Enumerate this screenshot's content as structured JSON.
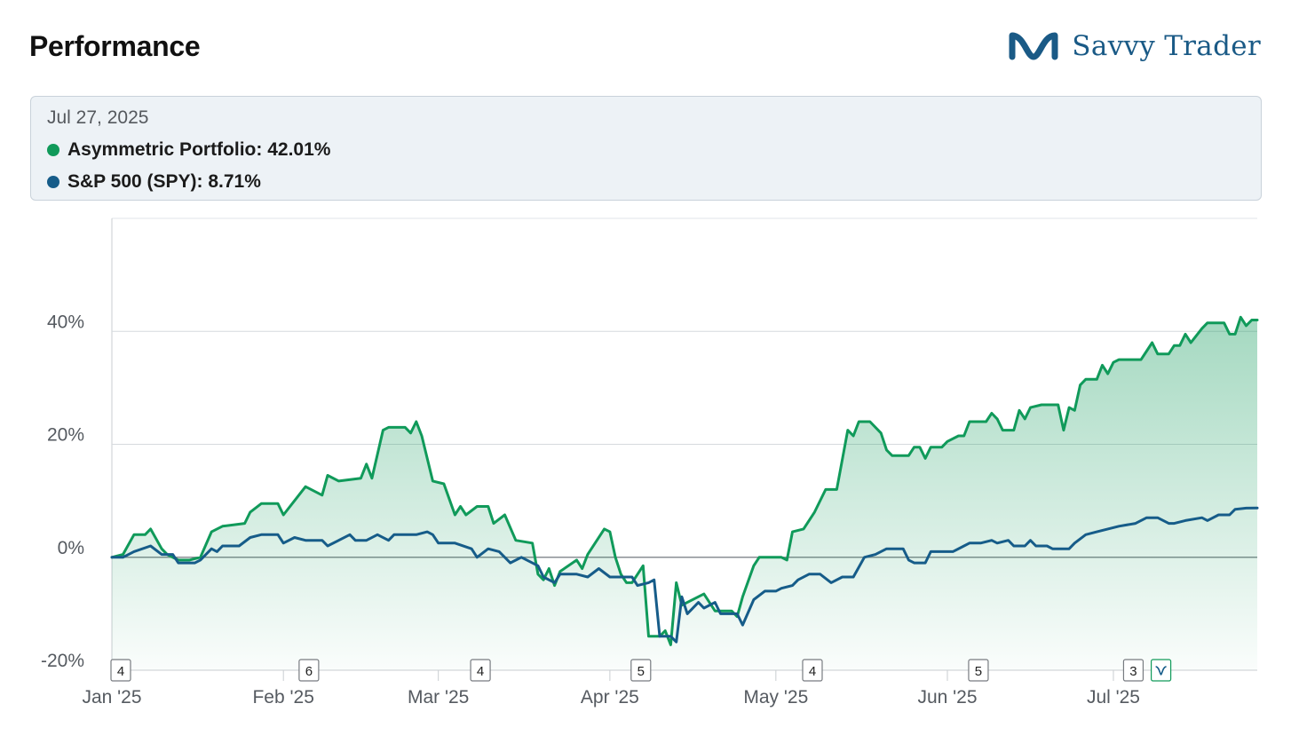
{
  "header": {
    "title": "Performance",
    "brand_name": "Savvy Trader",
    "brand_icon": "savvy-trader-logo-icon",
    "brand_color": "#1a5a86"
  },
  "tooltip": {
    "date": "Jul 27, 2025",
    "rows": [
      {
        "label": "Asymmetric Portfolio",
        "value": "42.01%",
        "color": "#109a5a"
      },
      {
        "label": "S&P 500 (SPY)",
        "value": "8.71%",
        "color": "#165c89"
      }
    ]
  },
  "chart_data": {
    "type": "line",
    "title": "",
    "xlabel": "",
    "ylabel": "",
    "x_range": [
      "2025-01-01",
      "2025-07-27"
    ],
    "ylim": [
      -20,
      60
    ],
    "y_ticks": [
      {
        "value": 40,
        "label": "40%"
      },
      {
        "value": 20,
        "label": "20%"
      },
      {
        "value": 0,
        "label": "0%"
      },
      {
        "value": -20,
        "label": "-20%"
      }
    ],
    "x_ticks": [
      {
        "date": "2025-01-01",
        "label": "Jan '25"
      },
      {
        "date": "2025-02-01",
        "label": "Feb '25"
      },
      {
        "date": "2025-03-01",
        "label": "Mar '25"
      },
      {
        "date": "2025-04-01",
        "label": "Apr '25"
      },
      {
        "date": "2025-05-01",
        "label": "May '25"
      },
      {
        "date": "2025-06-01",
        "label": "Jun '25"
      },
      {
        "date": "2025-07-01",
        "label": "Jul '25"
      }
    ],
    "grid": "horizontal",
    "legend": "top",
    "series": [
      {
        "name": "Asymmetric Portfolio",
        "color": "#109a5a",
        "filled": true,
        "points": [
          [
            "2025-01-01",
            0
          ],
          [
            "2025-01-03",
            0.5
          ],
          [
            "2025-01-05",
            4
          ],
          [
            "2025-01-07",
            4
          ],
          [
            "2025-01-08",
            5
          ],
          [
            "2025-01-10",
            1.5
          ],
          [
            "2025-01-11",
            0.5
          ],
          [
            "2025-01-13",
            -0.5
          ],
          [
            "2025-01-15",
            -0.5
          ],
          [
            "2025-01-17",
            0
          ],
          [
            "2025-01-19",
            4.5
          ],
          [
            "2025-01-21",
            5.5
          ],
          [
            "2025-01-25",
            6
          ],
          [
            "2025-01-26",
            8
          ],
          [
            "2025-01-28",
            9.5
          ],
          [
            "2025-01-31",
            9.5
          ],
          [
            "2025-02-01",
            7.5
          ],
          [
            "2025-02-03",
            10
          ],
          [
            "2025-02-05",
            12.5
          ],
          [
            "2025-02-08",
            11
          ],
          [
            "2025-02-09",
            14.5
          ],
          [
            "2025-02-11",
            13.5
          ],
          [
            "2025-02-15",
            14
          ],
          [
            "2025-02-16",
            16.5
          ],
          [
            "2025-02-17",
            14
          ],
          [
            "2025-02-19",
            22.5
          ],
          [
            "2025-02-20",
            23
          ],
          [
            "2025-02-23",
            23
          ],
          [
            "2025-02-24",
            22
          ],
          [
            "2025-02-25",
            24
          ],
          [
            "2025-02-26",
            21.5
          ],
          [
            "2025-02-28",
            13.5
          ],
          [
            "2025-03-02",
            13
          ],
          [
            "2025-03-04",
            7.5
          ],
          [
            "2025-03-05",
            9
          ],
          [
            "2025-03-06",
            7.5
          ],
          [
            "2025-03-08",
            9
          ],
          [
            "2025-03-10",
            9
          ],
          [
            "2025-03-11",
            6
          ],
          [
            "2025-03-13",
            7.5
          ],
          [
            "2025-03-15",
            3
          ],
          [
            "2025-03-18",
            2.5
          ],
          [
            "2025-03-19",
            -3
          ],
          [
            "2025-03-20",
            -4
          ],
          [
            "2025-03-21",
            -2
          ],
          [
            "2025-03-22",
            -5
          ],
          [
            "2025-03-23",
            -2.5
          ],
          [
            "2025-03-26",
            -0.5
          ],
          [
            "2025-03-27",
            -2
          ],
          [
            "2025-03-28",
            0.5
          ],
          [
            "2025-03-31",
            5
          ],
          [
            "2025-04-01",
            4.5
          ],
          [
            "2025-04-02",
            0
          ],
          [
            "2025-04-03",
            -3
          ],
          [
            "2025-04-04",
            -4.5
          ],
          [
            "2025-04-05",
            -4.5
          ],
          [
            "2025-04-07",
            -1.5
          ],
          [
            "2025-04-08",
            -14
          ],
          [
            "2025-04-10",
            -14
          ],
          [
            "2025-04-11",
            -13
          ],
          [
            "2025-04-12",
            -15.5
          ],
          [
            "2025-04-13",
            -4.5
          ],
          [
            "2025-04-14",
            -8.5
          ],
          [
            "2025-04-15",
            -8
          ],
          [
            "2025-04-18",
            -6.5
          ],
          [
            "2025-04-20",
            -9.5
          ],
          [
            "2025-04-23",
            -9.5
          ],
          [
            "2025-04-24",
            -10.5
          ],
          [
            "2025-04-25",
            -7
          ],
          [
            "2025-04-27",
            -1.5
          ],
          [
            "2025-04-28",
            0
          ],
          [
            "2025-04-30",
            0
          ],
          [
            "2025-05-02",
            0
          ],
          [
            "2025-05-03",
            -0.5
          ],
          [
            "2025-05-04",
            4.5
          ],
          [
            "2025-05-06",
            5
          ],
          [
            "2025-05-08",
            8
          ],
          [
            "2025-05-10",
            12
          ],
          [
            "2025-05-12",
            12
          ],
          [
            "2025-05-14",
            22.5
          ],
          [
            "2025-05-15",
            21.5
          ],
          [
            "2025-05-16",
            24
          ],
          [
            "2025-05-18",
            24
          ],
          [
            "2025-05-20",
            22
          ],
          [
            "2025-05-21",
            19
          ],
          [
            "2025-05-22",
            18
          ],
          [
            "2025-05-25",
            18
          ],
          [
            "2025-05-26",
            19.5
          ],
          [
            "2025-05-27",
            19.5
          ],
          [
            "2025-05-28",
            17.5
          ],
          [
            "2025-05-29",
            19.5
          ],
          [
            "2025-05-31",
            19.5
          ],
          [
            "2025-06-01",
            20.5
          ],
          [
            "2025-06-03",
            21.5
          ],
          [
            "2025-06-04",
            21.5
          ],
          [
            "2025-06-05",
            24
          ],
          [
            "2025-06-08",
            24
          ],
          [
            "2025-06-09",
            25.5
          ],
          [
            "2025-06-10",
            24.5
          ],
          [
            "2025-06-11",
            22.5
          ],
          [
            "2025-06-13",
            22.5
          ],
          [
            "2025-06-14",
            26
          ],
          [
            "2025-06-15",
            24.5
          ],
          [
            "2025-06-16",
            26.5
          ],
          [
            "2025-06-18",
            27
          ],
          [
            "2025-06-21",
            27
          ],
          [
            "2025-06-22",
            22.5
          ],
          [
            "2025-06-23",
            26.5
          ],
          [
            "2025-06-24",
            26
          ],
          [
            "2025-06-25",
            30.5
          ],
          [
            "2025-06-26",
            31.5
          ],
          [
            "2025-06-28",
            31.5
          ],
          [
            "2025-06-29",
            34
          ],
          [
            "2025-06-30",
            32.5
          ],
          [
            "2025-07-01",
            34.5
          ],
          [
            "2025-07-02",
            35
          ],
          [
            "2025-07-06",
            35
          ],
          [
            "2025-07-07",
            36.5
          ],
          [
            "2025-07-08",
            38
          ],
          [
            "2025-07-09",
            36
          ],
          [
            "2025-07-11",
            36
          ],
          [
            "2025-07-12",
            37.5
          ],
          [
            "2025-07-13",
            37.5
          ],
          [
            "2025-07-14",
            39.5
          ],
          [
            "2025-07-15",
            38
          ],
          [
            "2025-07-17",
            40.5
          ],
          [
            "2025-07-18",
            41.5
          ],
          [
            "2025-07-21",
            41.5
          ],
          [
            "2025-07-22",
            39.5
          ],
          [
            "2025-07-23",
            39.5
          ],
          [
            "2025-07-24",
            42.5
          ],
          [
            "2025-07-25",
            41
          ],
          [
            "2025-07-26",
            42
          ],
          [
            "2025-07-27",
            42.01
          ]
        ]
      },
      {
        "name": "S&P 500 (SPY)",
        "color": "#165c89",
        "filled": false,
        "points": [
          [
            "2025-01-01",
            0
          ],
          [
            "2025-01-03",
            0
          ],
          [
            "2025-01-05",
            1
          ],
          [
            "2025-01-08",
            2
          ],
          [
            "2025-01-10",
            0.5
          ],
          [
            "2025-01-12",
            0.5
          ],
          [
            "2025-01-13",
            -1
          ],
          [
            "2025-01-15",
            -1
          ],
          [
            "2025-01-16",
            -1
          ],
          [
            "2025-01-17",
            -0.5
          ],
          [
            "2025-01-19",
            1.5
          ],
          [
            "2025-01-20",
            1
          ],
          [
            "2025-01-21",
            2
          ],
          [
            "2025-01-24",
            2
          ],
          [
            "2025-01-26",
            3.5
          ],
          [
            "2025-01-28",
            4
          ],
          [
            "2025-01-31",
            4
          ],
          [
            "2025-02-01",
            2.5
          ],
          [
            "2025-02-03",
            3.5
          ],
          [
            "2025-02-05",
            3
          ],
          [
            "2025-02-08",
            3
          ],
          [
            "2025-02-09",
            2
          ],
          [
            "2025-02-11",
            3
          ],
          [
            "2025-02-13",
            4
          ],
          [
            "2025-02-14",
            3
          ],
          [
            "2025-02-16",
            3
          ],
          [
            "2025-02-18",
            4
          ],
          [
            "2025-02-20",
            3
          ],
          [
            "2025-02-21",
            4
          ],
          [
            "2025-02-25",
            4
          ],
          [
            "2025-02-27",
            4.5
          ],
          [
            "2025-02-28",
            4
          ],
          [
            "2025-03-01",
            2.5
          ],
          [
            "2025-03-04",
            2.5
          ],
          [
            "2025-03-07",
            1.5
          ],
          [
            "2025-03-08",
            0
          ],
          [
            "2025-03-10",
            1.5
          ],
          [
            "2025-03-12",
            1
          ],
          [
            "2025-03-14",
            -1
          ],
          [
            "2025-03-16",
            0
          ],
          [
            "2025-03-19",
            -1.5
          ],
          [
            "2025-03-20",
            -3.5
          ],
          [
            "2025-03-22",
            -4.5
          ],
          [
            "2025-03-23",
            -3
          ],
          [
            "2025-03-26",
            -3
          ],
          [
            "2025-03-28",
            -3.5
          ],
          [
            "2025-03-30",
            -2
          ],
          [
            "2025-04-01",
            -3.5
          ],
          [
            "2025-04-05",
            -3.5
          ],
          [
            "2025-04-06",
            -5
          ],
          [
            "2025-04-08",
            -4.5
          ],
          [
            "2025-04-09",
            -4
          ],
          [
            "2025-04-10",
            -14
          ],
          [
            "2025-04-12",
            -14
          ],
          [
            "2025-04-13",
            -15
          ],
          [
            "2025-04-14",
            -7
          ],
          [
            "2025-04-15",
            -10
          ],
          [
            "2025-04-17",
            -8
          ],
          [
            "2025-04-18",
            -9
          ],
          [
            "2025-04-20",
            -8
          ],
          [
            "2025-04-21",
            -10
          ],
          [
            "2025-04-24",
            -10
          ],
          [
            "2025-04-25",
            -12
          ],
          [
            "2025-04-27",
            -7.5
          ],
          [
            "2025-04-29",
            -6
          ],
          [
            "2025-05-01",
            -6
          ],
          [
            "2025-05-02",
            -5.5
          ],
          [
            "2025-05-04",
            -5
          ],
          [
            "2025-05-05",
            -4
          ],
          [
            "2025-05-07",
            -3
          ],
          [
            "2025-05-09",
            -3
          ],
          [
            "2025-05-11",
            -4.5
          ],
          [
            "2025-05-13",
            -3.5
          ],
          [
            "2025-05-15",
            -3.5
          ],
          [
            "2025-05-17",
            0
          ],
          [
            "2025-05-19",
            0.5
          ],
          [
            "2025-05-21",
            1.5
          ],
          [
            "2025-05-24",
            1.5
          ],
          [
            "2025-05-25",
            -0.5
          ],
          [
            "2025-05-26",
            -1
          ],
          [
            "2025-05-28",
            -1
          ],
          [
            "2025-05-29",
            1
          ],
          [
            "2025-05-31",
            1
          ],
          [
            "2025-06-02",
            1
          ],
          [
            "2025-06-04",
            2
          ],
          [
            "2025-06-05",
            2.5
          ],
          [
            "2025-06-07",
            2.5
          ],
          [
            "2025-06-09",
            3
          ],
          [
            "2025-06-10",
            2.5
          ],
          [
            "2025-06-12",
            3
          ],
          [
            "2025-06-13",
            2
          ],
          [
            "2025-06-15",
            2
          ],
          [
            "2025-06-16",
            3
          ],
          [
            "2025-06-17",
            2
          ],
          [
            "2025-06-19",
            2
          ],
          [
            "2025-06-20",
            1.5
          ],
          [
            "2025-06-23",
            1.5
          ],
          [
            "2025-06-24",
            2.5
          ],
          [
            "2025-06-26",
            4
          ],
          [
            "2025-06-28",
            4.5
          ],
          [
            "2025-06-30",
            5
          ],
          [
            "2025-07-02",
            5.5
          ],
          [
            "2025-07-05",
            6
          ],
          [
            "2025-07-07",
            7
          ],
          [
            "2025-07-09",
            7
          ],
          [
            "2025-07-11",
            6
          ],
          [
            "2025-07-12",
            6
          ],
          [
            "2025-07-14",
            6.5
          ],
          [
            "2025-07-17",
            7
          ],
          [
            "2025-07-18",
            6.5
          ],
          [
            "2025-07-20",
            7.5
          ],
          [
            "2025-07-22",
            7.5
          ],
          [
            "2025-07-23",
            8.5
          ],
          [
            "2025-07-25",
            8.7
          ],
          [
            "2025-07-27",
            8.71
          ]
        ]
      }
    ],
    "event_flags": [
      {
        "date": "2025-01-01",
        "label": "4"
      },
      {
        "date": "2025-02-04",
        "label": "6"
      },
      {
        "date": "2025-03-07",
        "label": "4"
      },
      {
        "date": "2025-04-05",
        "label": "5"
      },
      {
        "date": "2025-05-06",
        "label": "4"
      },
      {
        "date": "2025-06-05",
        "label": "5"
      },
      {
        "date": "2025-07-03",
        "label": "3"
      },
      {
        "date": "2025-07-08",
        "label": "",
        "icon": "savvy-trader-logo-icon"
      }
    ]
  }
}
